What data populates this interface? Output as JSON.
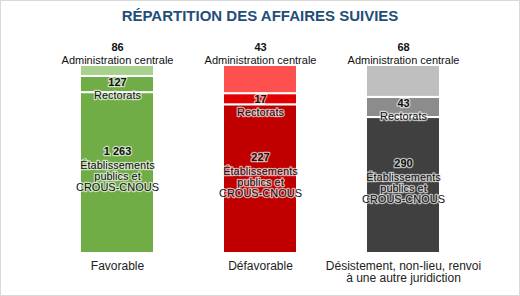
{
  "chart_data": {
    "type": "bar",
    "title": "RÉPARTITION DES AFFAIRES SUIVIES",
    "categories": [
      "Favorable",
      "Défavorable",
      "Désistement, non-lieu, renvoi à une autre juridiction"
    ],
    "series": [
      {
        "name": "Établissements publics et CROUS-CNOUS",
        "values": [
          1263,
          227,
          290
        ],
        "value_labels": [
          "1 263",
          "227",
          "290"
        ],
        "colors": [
          "#70ad47",
          "#c00000",
          "#404040"
        ]
      },
      {
        "name": "Rectorats",
        "values": [
          127,
          17,
          43
        ],
        "colors": [
          "#70ad47",
          "#e00000",
          "#8c8c8c"
        ]
      },
      {
        "name": "Administration centrale",
        "values": [
          86,
          43,
          68
        ],
        "colors": [
          "#a9d18e",
          "#ff5050",
          "#bfbfbf"
        ]
      }
    ],
    "stacked": true,
    "data_labels": true,
    "tick_labels": "x"
  }
}
